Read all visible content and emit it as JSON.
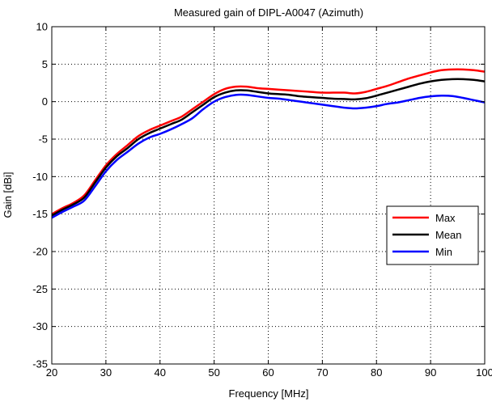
{
  "chart_data": {
    "type": "line",
    "title": "Measured gain of DIPL-A0047 (Azimuth)",
    "xlabel": "Frequency [MHz]",
    "ylabel": "Gain [dBi]",
    "xlim": [
      20,
      100
    ],
    "ylim": [
      -35,
      10
    ],
    "xticks": [
      20,
      30,
      40,
      50,
      60,
      70,
      80,
      90,
      100
    ],
    "xtick_labels": [
      "20",
      "30",
      "40",
      "50",
      "60",
      "70",
      "80",
      "90",
      "100"
    ],
    "yticks": [
      -35,
      -30,
      -25,
      -20,
      -15,
      -10,
      -5,
      0,
      5,
      10
    ],
    "ytick_labels": [
      "-35",
      "-30",
      "-25",
      "-20",
      "-15",
      "-10",
      "-5",
      "0",
      "5",
      "10"
    ],
    "grid": true,
    "legend_position": "right",
    "x": [
      20,
      22,
      24,
      26,
      28,
      30,
      32,
      34,
      36,
      38,
      40,
      42,
      44,
      46,
      48,
      50,
      52,
      54,
      56,
      58,
      60,
      62,
      64,
      66,
      68,
      70,
      72,
      74,
      76,
      78,
      80,
      82,
      84,
      86,
      88,
      90,
      92,
      94,
      96,
      98,
      100
    ],
    "series": [
      {
        "name": "Max",
        "color": "#ff0000",
        "values": [
          -15.0,
          -14.2,
          -13.5,
          -12.5,
          -10.5,
          -8.5,
          -7.0,
          -5.8,
          -4.6,
          -3.8,
          -3.2,
          -2.6,
          -2.0,
          -1.0,
          0.0,
          1.0,
          1.7,
          2.0,
          2.0,
          1.8,
          1.7,
          1.6,
          1.5,
          1.4,
          1.3,
          1.2,
          1.2,
          1.2,
          1.1,
          1.3,
          1.7,
          2.1,
          2.6,
          3.1,
          3.5,
          3.9,
          4.2,
          4.3,
          4.3,
          4.2,
          4.0
        ]
      },
      {
        "name": "Mean",
        "color": "#000000",
        "values": [
          -15.2,
          -14.4,
          -13.7,
          -12.8,
          -10.8,
          -8.8,
          -7.3,
          -6.2,
          -5.0,
          -4.2,
          -3.6,
          -3.0,
          -2.4,
          -1.4,
          -0.4,
          0.6,
          1.2,
          1.5,
          1.5,
          1.3,
          1.1,
          1.0,
          0.9,
          0.7,
          0.6,
          0.5,
          0.4,
          0.35,
          0.3,
          0.45,
          0.8,
          1.2,
          1.6,
          2.0,
          2.4,
          2.7,
          2.9,
          3.0,
          3.0,
          2.9,
          2.7
        ]
      },
      {
        "name": "Min",
        "color": "#0000ff",
        "values": [
          -15.5,
          -14.7,
          -14.0,
          -13.2,
          -11.3,
          -9.3,
          -7.8,
          -6.7,
          -5.6,
          -4.8,
          -4.3,
          -3.7,
          -3.0,
          -2.2,
          -1.0,
          0.0,
          0.6,
          0.9,
          0.9,
          0.7,
          0.5,
          0.4,
          0.2,
          0.0,
          -0.2,
          -0.4,
          -0.6,
          -0.8,
          -0.9,
          -0.8,
          -0.6,
          -0.3,
          -0.1,
          0.2,
          0.5,
          0.7,
          0.8,
          0.75,
          0.5,
          0.2,
          -0.1
        ]
      }
    ]
  }
}
